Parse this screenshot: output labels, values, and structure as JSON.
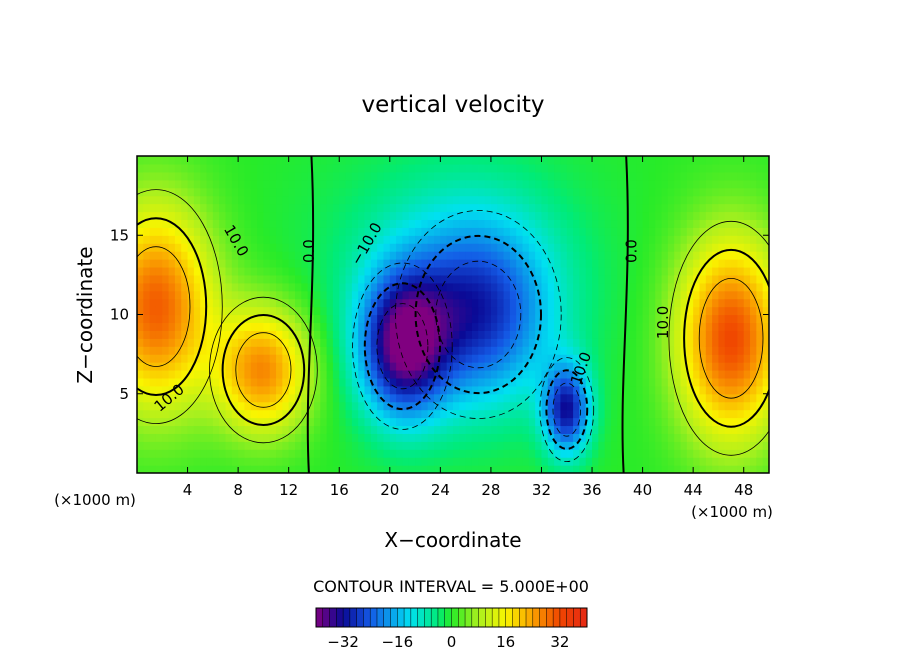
{
  "chart_data": {
    "type": "heatmap",
    "title": "vertical velocity",
    "xlabel": "X−coordinate",
    "ylabel": "Z−coordinate",
    "x_unit": "(×1000 m)",
    "z_unit": "(×1000 m)",
    "xlim": [
      0,
      50
    ],
    "ylim": [
      0,
      20
    ],
    "x_ticks": [
      4,
      8,
      12,
      16,
      20,
      24,
      28,
      32,
      36,
      40,
      44,
      48
    ],
    "y_ticks": [
      5,
      10,
      15
    ],
    "contour_interval_text": "CONTOUR INTERVAL = 5.000E+00",
    "contour_labels": [
      "10.0",
      "0.0",
      "−10.0",
      "10.0",
      "10.0",
      "0.0",
      "10.0"
    ],
    "colorbar": {
      "range": [
        -40,
        40
      ],
      "tick_values": [
        -32,
        -16,
        0,
        16,
        32
      ],
      "tick_labels": [
        "−32",
        "−16",
        "0",
        "16",
        "32"
      ]
    },
    "features": [
      {
        "name": "updraft",
        "x": 1.5,
        "z": 10.5,
        "peak": 30
      },
      {
        "name": "updraft",
        "x": 10,
        "z": 6.5,
        "peak": 26
      },
      {
        "name": "updraft",
        "x": 47,
        "z": 8.5,
        "peak": 32
      },
      {
        "name": "downdraft",
        "x": 21,
        "z": 8,
        "peak": -34
      },
      {
        "name": "downdraft",
        "x": 27,
        "z": 10,
        "peak": -24
      },
      {
        "name": "downdraft",
        "x": 34,
        "z": 4,
        "peak": -30
      }
    ]
  }
}
